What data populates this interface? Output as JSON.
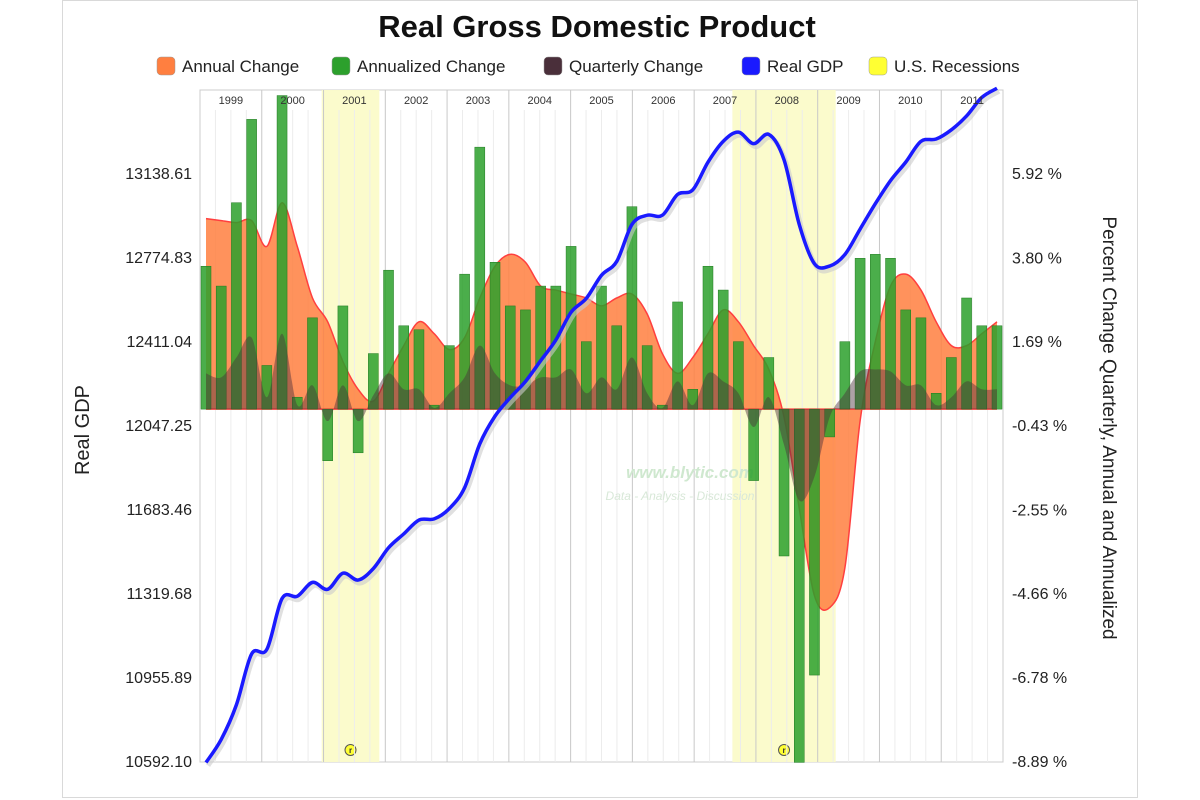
{
  "chart_data": {
    "type": "bar",
    "title": "Real Gross Domestic Product",
    "ylabel_left": "Real GDP",
    "ylabel_right": "Percent Change Quarterly, Annual and Annualized",
    "left_ticks": [
      "13138.61",
      "12774.83",
      "12411.04",
      "12047.25",
      "11683.46",
      "11319.68",
      "10955.89",
      "10592.10"
    ],
    "left_range": [
      10592.1,
      13502.4
    ],
    "right_ticks": [
      "5.92 %",
      "3.80 %",
      "1.69 %",
      "-0.43 %",
      "-2.55 %",
      "-4.66 %",
      "-6.78 %",
      "-8.89 %"
    ],
    "right_range": [
      -8.89,
      8.04
    ],
    "year_labels": [
      "1999",
      "2000",
      "2001",
      "2002",
      "2003",
      "2004",
      "2005",
      "2006",
      "2007",
      "2008",
      "2009",
      "2010",
      "2011"
    ],
    "quarters": [
      "1999Q1",
      "1999Q2",
      "1999Q3",
      "1999Q4",
      "2000Q1",
      "2000Q2",
      "2000Q3",
      "2000Q4",
      "2001Q1",
      "2001Q2",
      "2001Q3",
      "2001Q4",
      "2002Q1",
      "2002Q2",
      "2002Q3",
      "2002Q4",
      "2003Q1",
      "2003Q2",
      "2003Q3",
      "2003Q4",
      "2004Q1",
      "2004Q2",
      "2004Q3",
      "2004Q4",
      "2005Q1",
      "2005Q2",
      "2005Q3",
      "2005Q4",
      "2006Q1",
      "2006Q2",
      "2006Q3",
      "2006Q4",
      "2007Q1",
      "2007Q2",
      "2007Q3",
      "2007Q4",
      "2008Q1",
      "2008Q2",
      "2008Q3",
      "2008Q4",
      "2009Q1",
      "2009Q2",
      "2009Q3",
      "2009Q4",
      "2010Q1",
      "2010Q2",
      "2010Q3",
      "2010Q4",
      "2011Q1",
      "2011Q2",
      "2011Q3",
      "2011Q4",
      "2012Q1"
    ],
    "recessions": [
      {
        "start": "2001Q1",
        "end": "2001Q4",
        "marker": "r"
      },
      {
        "start": "2007Q4",
        "end": "2009Q2",
        "marker": "r"
      }
    ],
    "series": [
      {
        "name": "Annual Change",
        "color": "#ff7f40",
        "line_color": "#ff3f3f",
        "values": [
          4.8,
          4.75,
          4.7,
          4.75,
          4.1,
          5.2,
          4.1,
          2.8,
          2.2,
          1.2,
          0.5,
          0.2,
          0.9,
          1.6,
          2.2,
          1.9,
          1.5,
          1.8,
          2.8,
          3.6,
          3.9,
          3.7,
          3.1,
          3.0,
          2.9,
          2.8,
          2.6,
          2.8,
          2.9,
          2.4,
          1.4,
          0.9,
          1.3,
          1.9,
          2.5,
          2.2,
          1.6,
          1.0,
          -0.2,
          -2.5,
          -4.7,
          -5.0,
          -4.0,
          -0.3,
          1.7,
          3.1,
          3.4,
          3.0,
          2.2,
          1.6,
          1.6,
          1.9,
          2.2
        ]
      },
      {
        "name": "Annualized Change",
        "color": "#2ca02c",
        "line_color": "#1f7a1f",
        "values": [
          3.6,
          3.1,
          5.2,
          7.3,
          1.1,
          7.9,
          0.3,
          2.3,
          -1.3,
          2.6,
          -1.1,
          1.4,
          3.5,
          2.1,
          2.0,
          0.1,
          1.6,
          3.4,
          6.6,
          3.7,
          2.6,
          2.5,
          3.1,
          3.1,
          4.1,
          1.7,
          3.1,
          2.1,
          5.1,
          1.6,
          0.1,
          2.7,
          0.5,
          3.6,
          3.0,
          1.7,
          -1.8,
          1.3,
          -3.7,
          -8.9,
          -6.7,
          -0.7,
          1.7,
          3.8,
          3.9,
          3.8,
          2.5,
          2.3,
          0.4,
          1.3,
          2.8,
          2.1,
          2.1
        ]
      },
      {
        "name": "Quarterly Change",
        "color": "#4a2f3a",
        "line_color": "#4a2f3a",
        "values": [
          0.9,
          0.8,
          1.3,
          1.8,
          0.3,
          1.9,
          0.1,
          0.6,
          -0.3,
          0.6,
          -0.3,
          0.35,
          0.9,
          0.5,
          0.5,
          0.03,
          0.4,
          0.8,
          1.6,
          0.9,
          0.6,
          0.6,
          0.8,
          0.8,
          1.0,
          0.4,
          0.8,
          0.5,
          1.3,
          0.4,
          0.03,
          0.7,
          0.1,
          0.9,
          0.7,
          0.4,
          -0.45,
          0.3,
          -0.9,
          -2.3,
          -1.7,
          -0.2,
          0.4,
          0.95,
          1.0,
          0.95,
          0.6,
          0.6,
          0.1,
          0.3,
          0.7,
          0.5,
          0.5
        ]
      },
      {
        "name": "Real GDP",
        "color": "#1a1aff",
        "line_color": "#1a1aff",
        "values": [
          10590,
          10690,
          10840,
          11060,
          11080,
          11300,
          11310,
          11370,
          11340,
          11410,
          11380,
          11430,
          11520,
          11580,
          11640,
          11645,
          11690,
          11780,
          11970,
          12090,
          12170,
          12240,
          12330,
          12420,
          12540,
          12600,
          12700,
          12760,
          12920,
          12960,
          12960,
          13050,
          13070,
          13190,
          13280,
          13320,
          13270,
          13310,
          13200,
          12920,
          12750,
          12740,
          12790,
          12900,
          13010,
          13110,
          13190,
          13280,
          13290,
          13330,
          13390,
          13470,
          13510
        ]
      },
      {
        "name": "U.S. Recessions",
        "color": "#ffff33",
        "line_color": "#ffff33",
        "values": []
      }
    ],
    "watermark": [
      "www.blytic.com",
      "Data - Analysis - Discussion"
    ],
    "legend_position": "top-center",
    "grid": true
  }
}
